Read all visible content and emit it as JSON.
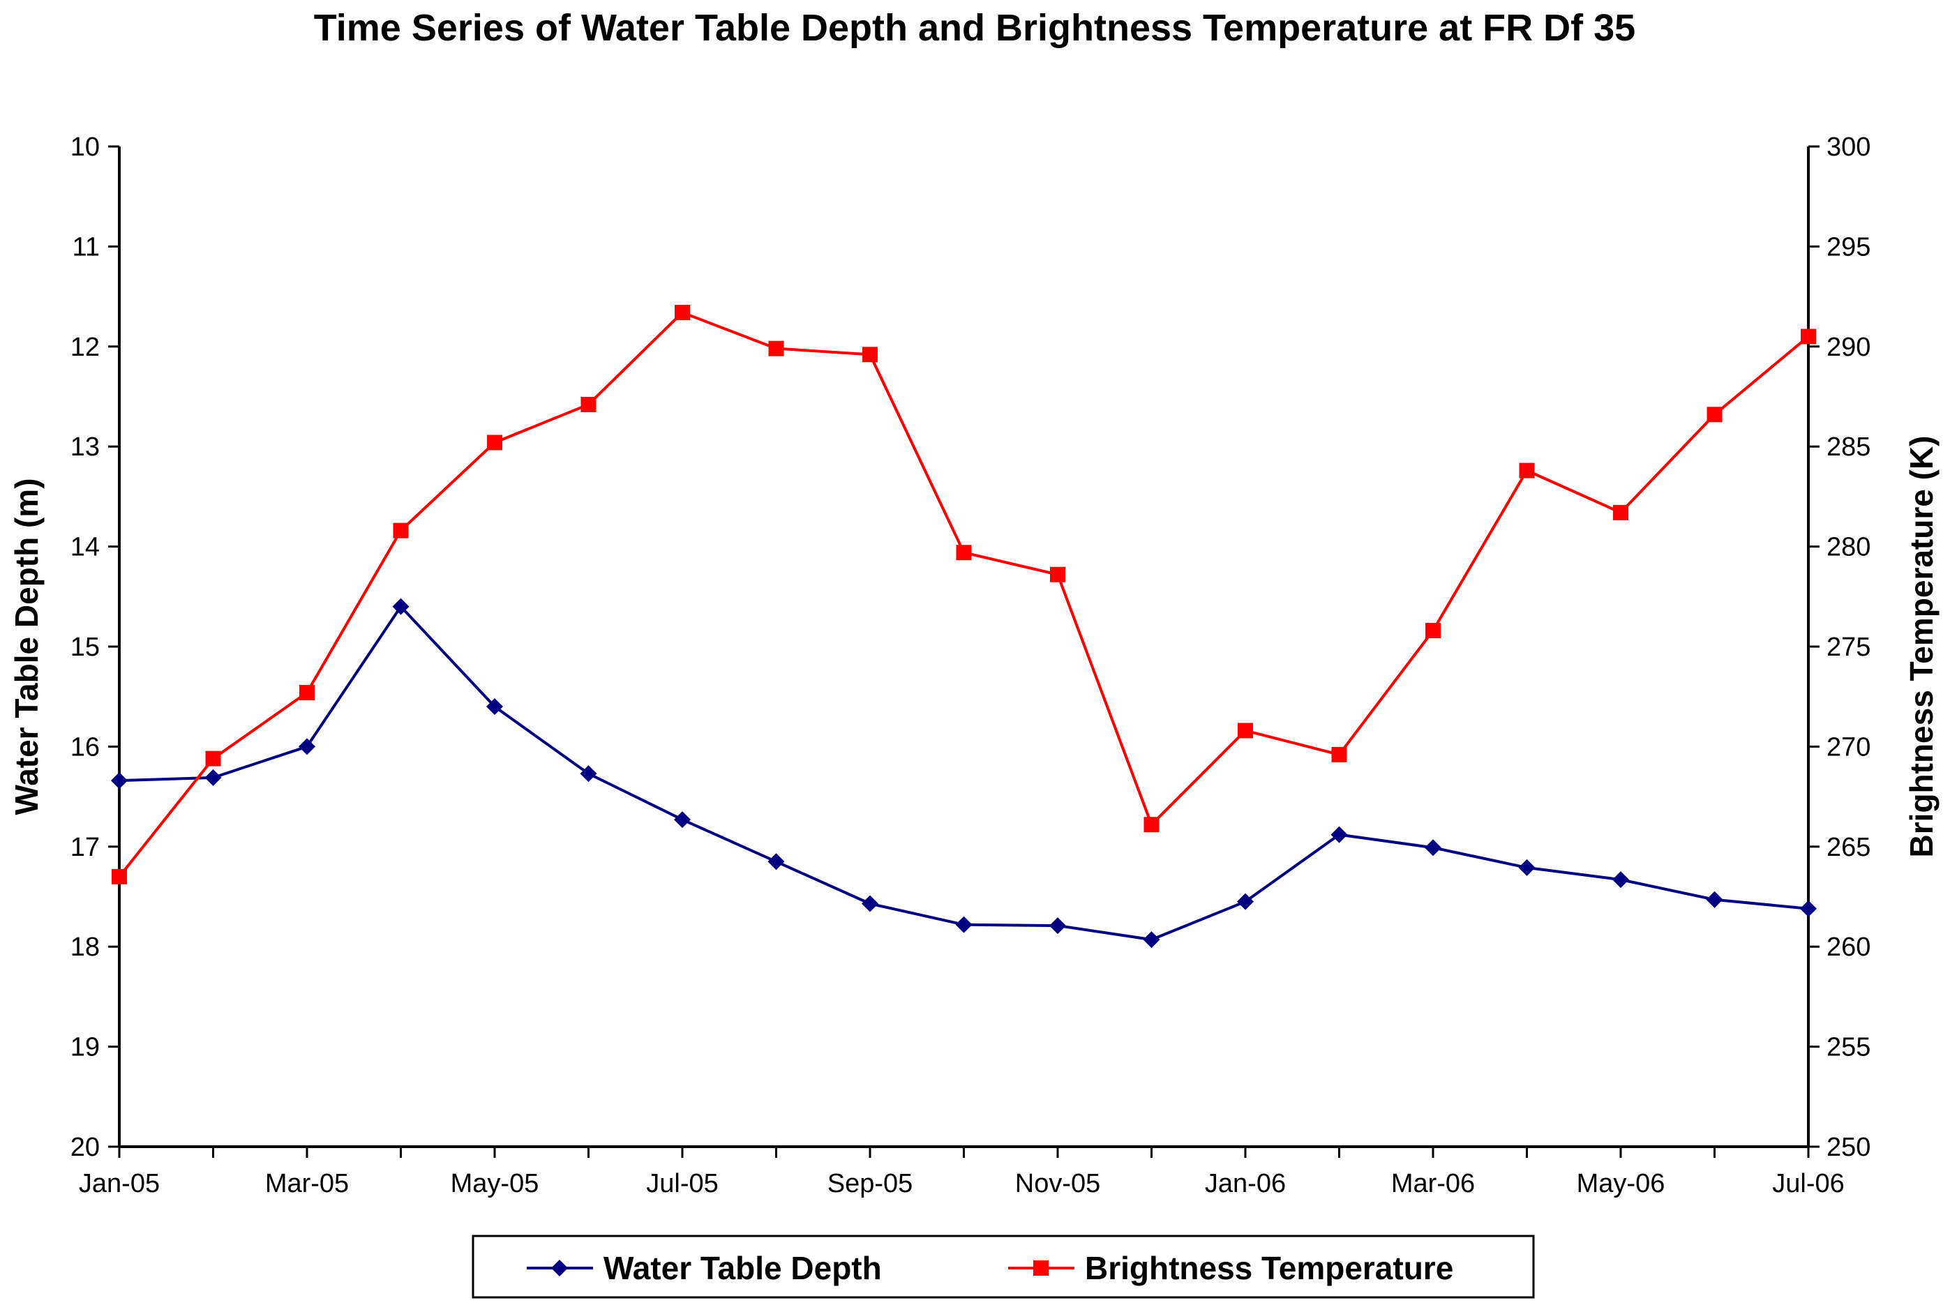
{
  "chart_data": {
    "type": "line",
    "title": "Time Series of Water Table Depth and Brightness Temperature at FR Df 35",
    "x": [
      "Jan-05",
      "Feb-05",
      "Mar-05",
      "Apr-05",
      "May-05",
      "Jun-05",
      "Jul-05",
      "Aug-05",
      "Sep-05",
      "Oct-05",
      "Nov-05",
      "Dec-05",
      "Jan-06",
      "Feb-06",
      "Mar-06",
      "Apr-06",
      "May-06",
      "Jun-06",
      "Jul-06"
    ],
    "x_tick_labels": [
      "Jan-05",
      "",
      "Mar-05",
      "",
      "May-05",
      "",
      "Jul-05",
      "",
      "Sep-05",
      "",
      "Nov-05",
      "",
      "Jan-06",
      "",
      "Mar-06",
      "",
      "May-06",
      "",
      "Jul-06"
    ],
    "xlabel": "",
    "ylabel": "Water Table Depth (m)",
    "y2label": "Brightness Temperature (K)",
    "ylim": [
      10,
      20
    ],
    "y_inverted": true,
    "y_ticks": [
      10,
      11,
      12,
      13,
      14,
      15,
      16,
      17,
      18,
      19,
      20
    ],
    "y2lim": [
      250,
      300
    ],
    "y2_ticks": [
      250,
      255,
      260,
      265,
      270,
      275,
      280,
      285,
      290,
      295,
      300
    ],
    "grid": false,
    "legend_position": "bottom",
    "series": [
      {
        "name": "Water Table Depth",
        "axis": "left",
        "color": "#000080",
        "marker": "diamond",
        "values": [
          16.34,
          16.31,
          16.0,
          14.6,
          15.6,
          16.27,
          16.73,
          17.15,
          17.57,
          17.78,
          17.79,
          17.93,
          17.55,
          16.88,
          17.01,
          17.21,
          17.33,
          17.53,
          17.62
        ]
      },
      {
        "name": "Brightness Temperature",
        "axis": "right",
        "color": "#ff0000",
        "marker": "square",
        "values": [
          263.5,
          269.4,
          272.7,
          280.8,
          285.2,
          287.1,
          291.7,
          289.9,
          289.6,
          279.7,
          278.6,
          266.1,
          270.8,
          269.6,
          275.8,
          283.8,
          281.7,
          286.6,
          290.5
        ]
      }
    ]
  }
}
